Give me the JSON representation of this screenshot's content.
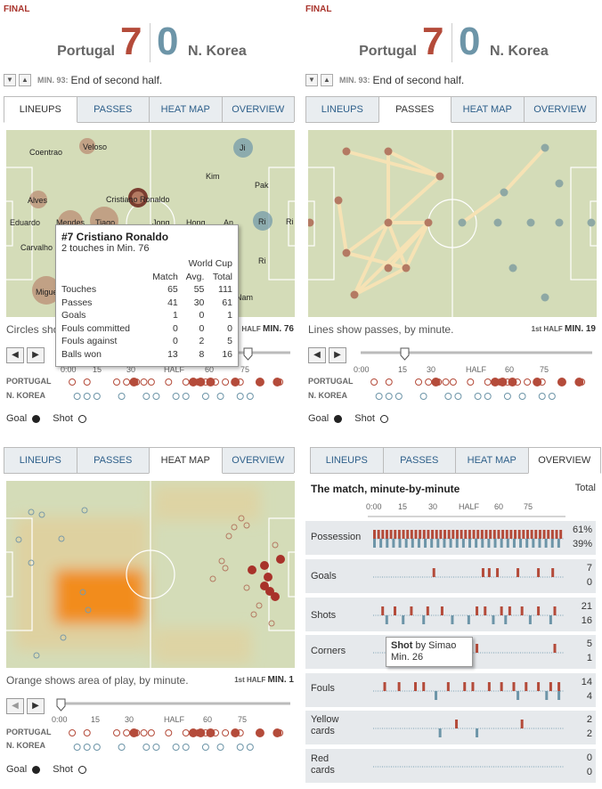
{
  "match": {
    "status": "FINAL",
    "team1": "Portugal",
    "score1": "7",
    "score2": "0",
    "team2": "N. Korea",
    "minute_label": "MIN. 93:",
    "minute_text": "End of second half."
  },
  "tabs": [
    "LINEUPS",
    "PASSES",
    "HEAT MAP",
    "OVERVIEW"
  ],
  "lineups": {
    "players": [
      {
        "name": "Veloso"
      },
      {
        "name": "Coentrao"
      },
      {
        "name": "Alves"
      },
      {
        "name": "Cristiano Ronaldo"
      },
      {
        "name": "Eduardo"
      },
      {
        "name": "Mendes"
      },
      {
        "name": "Tiago"
      },
      {
        "name": "Carvalho"
      },
      {
        "name": "Miguel"
      },
      {
        "name": "Ji"
      },
      {
        "name": "Kim"
      },
      {
        "name": "Pak"
      },
      {
        "name": "Jong"
      },
      {
        "name": "Hong"
      },
      {
        "name": "An"
      },
      {
        "name": "Ri"
      },
      {
        "name": "Ri"
      },
      {
        "name": "Ri"
      },
      {
        "name": "Nam"
      }
    ],
    "caption": "Circles sho",
    "half_label": "HALF",
    "half_min": "MIN. 76",
    "tooltip": {
      "title": "#7 Cristiano Ronaldo",
      "subtitle": "2 touches in Min. 76",
      "group_header": "World Cup",
      "headers": [
        "Match",
        "Avg.",
        "Total"
      ],
      "rows": [
        {
          "label": "Touches",
          "match": "65",
          "avg": "55",
          "total": "111"
        },
        {
          "label": "Passes",
          "match": "41",
          "avg": "30",
          "total": "61"
        },
        {
          "label": "Goals",
          "match": "1",
          "avg": "0",
          "total": "1"
        },
        {
          "label": "Fouls committed",
          "match": "0",
          "avg": "0",
          "total": "0"
        },
        {
          "label": "Fouls against",
          "match": "0",
          "avg": "2",
          "total": "5"
        },
        {
          "label": "Balls won",
          "match": "13",
          "avg": "8",
          "total": "16"
        }
      ]
    }
  },
  "passes": {
    "caption": "Lines show passes, by minute.",
    "half_label": "1st HALF",
    "half_min": "MIN. 19"
  },
  "heatmap": {
    "caption": "Orange shows area of play, by minute.",
    "half_label": "1st HALF",
    "half_min": "MIN. 1"
  },
  "timeline": {
    "ticks": [
      "0:00",
      "15",
      "30",
      "HALF",
      "60",
      "75"
    ],
    "team1_label": "PORTUGAL",
    "team2_label": "N. KOREA",
    "legend_goal": "Goal",
    "legend_shot": "Shot"
  },
  "overview": {
    "title": "The match, minute-by-minute",
    "total_label": "Total",
    "ticks": [
      "0:00",
      "15",
      "30",
      "HALF",
      "60",
      "75"
    ],
    "rows": [
      {
        "label": "Possession",
        "v1": "61%",
        "v2": "39%"
      },
      {
        "label": "Goals",
        "v1": "7",
        "v2": "0"
      },
      {
        "label": "Shots",
        "v1": "21",
        "v2": "16"
      },
      {
        "label": "Corners",
        "v1": "5",
        "v2": "1"
      },
      {
        "label": "Fouls",
        "v1": "14",
        "v2": "4"
      },
      {
        "label": "Yellow cards",
        "v1": "2",
        "v2": "2"
      },
      {
        "label": "Red cards",
        "v1": "0",
        "v2": "0"
      }
    ],
    "tooltip_bold": "Shot",
    "tooltip_rest": " by Simao",
    "tooltip_min": "Min. 26"
  },
  "colors": {
    "portugal": "#b44b3a",
    "nkorea": "#6d95a8",
    "pitch": "#d4dcb8",
    "heat": "#f28c1c"
  }
}
